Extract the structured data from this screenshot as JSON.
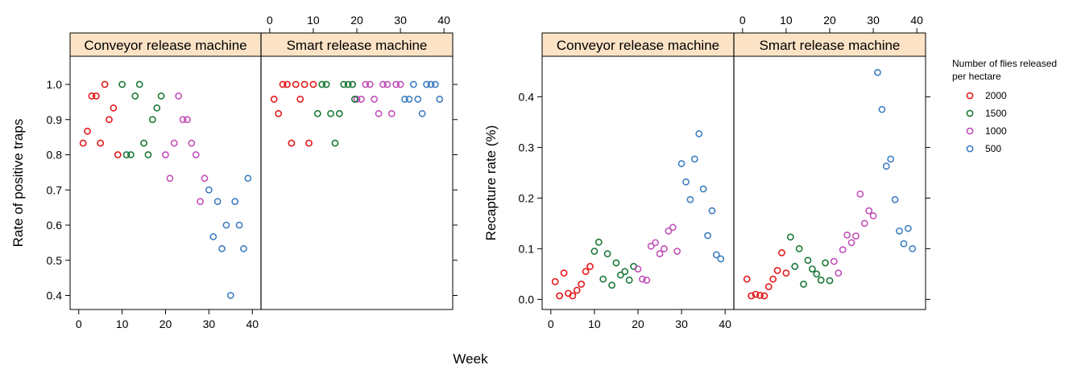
{
  "chart_data": [
    {
      "type": "scatter",
      "ylabel": "Rate of positive traps",
      "xlabel": "Week",
      "xlim": [
        -2,
        42
      ],
      "ylim": [
        0.36,
        1.08
      ],
      "xticks": [
        0,
        10,
        20,
        30,
        40
      ],
      "yticks": [
        0.4,
        0.5,
        0.6,
        0.7,
        0.8,
        0.9,
        1.0
      ],
      "ytick_labels": [
        "0.4",
        "0.5",
        "0.6",
        "0.7",
        "0.8",
        "0.9",
        "1.0"
      ],
      "panels": [
        {
          "strip": "Conveyor release machine",
          "series": [
            {
              "name": "2000",
              "color": "#e41a1c",
              "points": [
                [
                  1,
                  0.833
                ],
                [
                  2,
                  0.867
                ],
                [
                  3,
                  0.967
                ],
                [
                  4,
                  0.967
                ],
                [
                  5,
                  0.833
                ],
                [
                  6,
                  1.0
                ],
                [
                  7,
                  0.9
                ],
                [
                  8,
                  0.933
                ],
                [
                  9,
                  0.8
                ]
              ]
            },
            {
              "name": "1500",
              "color": "#1b7837",
              "points": [
                [
                  10,
                  1.0
                ],
                [
                  11,
                  0.8
                ],
                [
                  12,
                  0.8
                ],
                [
                  13,
                  0.967
                ],
                [
                  14,
                  1.0
                ],
                [
                  15,
                  0.833
                ],
                [
                  16,
                  0.8
                ],
                [
                  17,
                  0.9
                ],
                [
                  18,
                  0.933
                ],
                [
                  19,
                  0.967
                ]
              ]
            },
            {
              "name": "1000",
              "color": "#c051b8",
              "points": [
                [
                  20,
                  0.8
                ],
                [
                  21,
                  0.733
                ],
                [
                  22,
                  0.833
                ],
                [
                  23,
                  0.967
                ],
                [
                  24,
                  0.9
                ],
                [
                  25,
                  0.9
                ],
                [
                  26,
                  0.833
                ],
                [
                  27,
                  0.8
                ],
                [
                  28,
                  0.667
                ],
                [
                  29,
                  0.733
                ]
              ]
            },
            {
              "name": "500",
              "color": "#3f7fc1",
              "points": [
                [
                  30,
                  0.7
                ],
                [
                  31,
                  0.567
                ],
                [
                  32,
                  0.667
                ],
                [
                  33,
                  0.533
                ],
                [
                  34,
                  0.6
                ],
                [
                  35,
                  0.4
                ],
                [
                  36,
                  0.667
                ],
                [
                  37,
                  0.6
                ],
                [
                  38,
                  0.533
                ],
                [
                  39,
                  0.733
                ]
              ]
            }
          ]
        },
        {
          "strip": "Smart release machine",
          "series": [
            {
              "name": "2000",
              "color": "#e41a1c",
              "points": [
                [
                  1,
                  0.958
                ],
                [
                  2,
                  0.917
                ],
                [
                  3,
                  1.0
                ],
                [
                  4,
                  1.0
                ],
                [
                  5,
                  0.833
                ],
                [
                  6,
                  1.0
                ],
                [
                  7,
                  0.958
                ],
                [
                  8,
                  1.0
                ],
                [
                  9,
                  0.833
                ],
                [
                  10,
                  1.0
                ]
              ]
            },
            {
              "name": "1500",
              "color": "#1b7837",
              "points": [
                [
                  11,
                  0.917
                ],
                [
                  12,
                  1.0
                ],
                [
                  13,
                  1.0
                ],
                [
                  14,
                  0.917
                ],
                [
                  15,
                  0.833
                ],
                [
                  16,
                  0.917
                ],
                [
                  17,
                  1.0
                ],
                [
                  18,
                  1.0
                ],
                [
                  19,
                  1.0
                ]
              ]
            },
            {
              "name": "1000",
              "color": "#c051b8",
              "points": [
                [
                  20,
                  0.958
                ],
                [
                  21,
                  0.958
                ],
                [
                  22,
                  1.0
                ],
                [
                  23,
                  1.0
                ],
                [
                  24,
                  0.958
                ],
                [
                  25,
                  0.917
                ],
                [
                  26,
                  1.0
                ],
                [
                  27,
                  1.0
                ],
                [
                  28,
                  0.917
                ],
                [
                  29,
                  1.0
                ],
                [
                  30,
                  1.0
                ]
              ]
            },
            {
              "name": "500",
              "color": "#3f7fc1",
              "points": [
                [
                  31,
                  0.958
                ],
                [
                  32,
                  0.958
                ],
                [
                  33,
                  1.0
                ],
                [
                  34,
                  0.958
                ],
                [
                  35,
                  0.917
                ],
                [
                  36,
                  1.0
                ],
                [
                  37,
                  1.0
                ],
                [
                  38,
                  1.0
                ],
                [
                  39,
                  0.958
                ]
              ]
            },
            {
              "name": "1500",
              "color": "#1b7837",
              "points": [
                [
                  19.5,
                  0.958
                ]
              ]
            }
          ]
        }
      ]
    },
    {
      "type": "scatter",
      "ylabel": "Recapture rate (%)",
      "xlabel": "Week",
      "xlim": [
        -2,
        42
      ],
      "ylim": [
        -0.02,
        0.48
      ],
      "xticks": [
        0,
        10,
        20,
        30,
        40
      ],
      "yticks": [
        0.0,
        0.1,
        0.2,
        0.3,
        0.4
      ],
      "ytick_labels": [
        "0.0",
        "0.1",
        "0.2",
        "0.3",
        "0.4"
      ],
      "panels": [
        {
          "strip": "Conveyor release machine",
          "series": [
            {
              "name": "2000",
              "color": "#e41a1c",
              "points": [
                [
                  1,
                  0.035
                ],
                [
                  2,
                  0.007
                ],
                [
                  3,
                  0.052
                ],
                [
                  4,
                  0.012
                ],
                [
                  5,
                  0.007
                ],
                [
                  6,
                  0.018
                ],
                [
                  7,
                  0.03
                ],
                [
                  8,
                  0.055
                ],
                [
                  9,
                  0.065
                ]
              ]
            },
            {
              "name": "1500",
              "color": "#1b7837",
              "points": [
                [
                  10,
                  0.095
                ],
                [
                  11,
                  0.113
                ],
                [
                  12,
                  0.04
                ],
                [
                  13,
                  0.09
                ],
                [
                  14,
                  0.028
                ],
                [
                  15,
                  0.072
                ],
                [
                  16,
                  0.048
                ],
                [
                  17,
                  0.055
                ],
                [
                  18,
                  0.038
                ],
                [
                  19,
                  0.065
                ]
              ]
            },
            {
              "name": "1000",
              "color": "#c051b8",
              "points": [
                [
                  20,
                  0.06
                ],
                [
                  21,
                  0.04
                ],
                [
                  22,
                  0.038
                ],
                [
                  23,
                  0.105
                ],
                [
                  24,
                  0.112
                ],
                [
                  25,
                  0.09
                ],
                [
                  26,
                  0.1
                ],
                [
                  27,
                  0.135
                ],
                [
                  28,
                  0.142
                ],
                [
                  29,
                  0.095
                ]
              ]
            },
            {
              "name": "500",
              "color": "#3f7fc1",
              "points": [
                [
                  30,
                  0.268
                ],
                [
                  31,
                  0.232
                ],
                [
                  32,
                  0.197
                ],
                [
                  33,
                  0.277
                ],
                [
                  34,
                  0.327
                ],
                [
                  35,
                  0.218
                ],
                [
                  36,
                  0.126
                ],
                [
                  37,
                  0.175
                ],
                [
                  38,
                  0.088
                ],
                [
                  39,
                  0.08
                ]
              ]
            }
          ]
        },
        {
          "strip": "Smart release machine",
          "series": [
            {
              "name": "2000",
              "color": "#e41a1c",
              "points": [
                [
                  1,
                  0.04
                ],
                [
                  2,
                  0.007
                ],
                [
                  3,
                  0.01
                ],
                [
                  4,
                  0.008
                ],
                [
                  5,
                  0.007
                ],
                [
                  6,
                  0.025
                ],
                [
                  7,
                  0.04
                ],
                [
                  8,
                  0.057
                ],
                [
                  9,
                  0.092
                ],
                [
                  10,
                  0.052
                ]
              ]
            },
            {
              "name": "1500",
              "color": "#1b7837",
              "points": [
                [
                  11,
                  0.123
                ],
                [
                  12,
                  0.065
                ],
                [
                  13,
                  0.1
                ],
                [
                  14,
                  0.03
                ],
                [
                  15,
                  0.077
                ],
                [
                  16,
                  0.06
                ],
                [
                  17,
                  0.05
                ],
                [
                  18,
                  0.038
                ],
                [
                  19,
                  0.072
                ],
                [
                  20,
                  0.037
                ]
              ]
            },
            {
              "name": "1000",
              "color": "#c051b8",
              "points": [
                [
                  21,
                  0.075
                ],
                [
                  22,
                  0.052
                ],
                [
                  23,
                  0.098
                ],
                [
                  24,
                  0.127
                ],
                [
                  25,
                  0.112
                ],
                [
                  26,
                  0.125
                ],
                [
                  27,
                  0.208
                ],
                [
                  28,
                  0.15
                ],
                [
                  29,
                  0.175
                ],
                [
                  30,
                  0.165
                ]
              ]
            },
            {
              "name": "500",
              "color": "#3f7fc1",
              "points": [
                [
                  31,
                  0.448
                ],
                [
                  32,
                  0.375
                ],
                [
                  33,
                  0.263
                ],
                [
                  34,
                  0.277
                ],
                [
                  35,
                  0.197
                ],
                [
                  36,
                  0.135
                ],
                [
                  37,
                  0.11
                ],
                [
                  38,
                  0.14
                ],
                [
                  39,
                  0.1
                ]
              ]
            }
          ]
        }
      ]
    }
  ],
  "legend": {
    "title_line1": "Number of flies released",
    "title_line2": "per hectare",
    "entries": [
      {
        "label": "2000",
        "color": "#e41a1c"
      },
      {
        "label": "1500",
        "color": "#1b7837"
      },
      {
        "label": "1000",
        "color": "#c051b8"
      },
      {
        "label": "500",
        "color": "#3f7fc1"
      }
    ]
  },
  "x_title": "Week",
  "strip_fill": "#fde3c6"
}
